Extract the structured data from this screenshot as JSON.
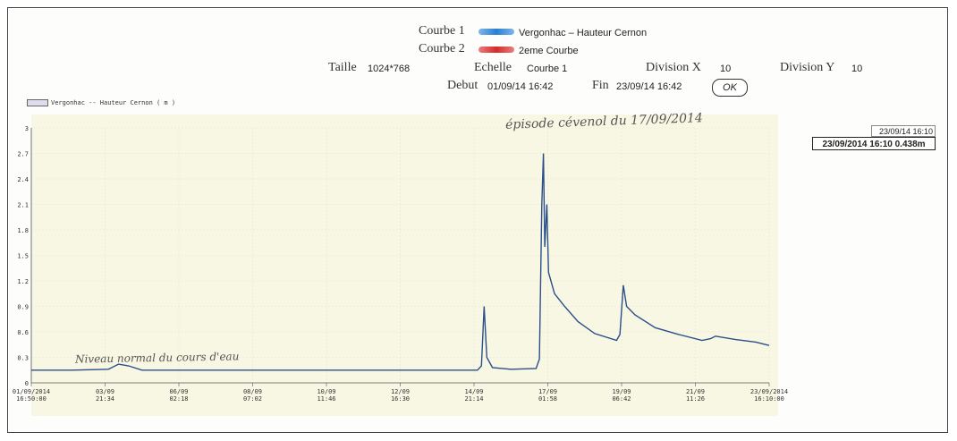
{
  "legend": {
    "courbe1_label": "Courbe 1",
    "courbe1_name": "Vergonhac – Hauteur Cernon",
    "courbe2_label": "Courbe 2",
    "courbe2_name": "2eme Courbe",
    "courbe1_color": "#2a7fd4",
    "courbe2_color": "#d42a2a"
  },
  "controls": {
    "taille_label": "Taille",
    "taille_value": "1024*768",
    "echelle_label": "Echelle",
    "echelle_value": "Courbe 1",
    "divx_label": "Division X",
    "divx_value": "10",
    "divy_label": "Division Y",
    "divy_value": "10",
    "debut_label": "Debut",
    "debut_value": "01/09/14 16:42",
    "fin_label": "Fin",
    "fin_value": "23/09/14 16:42",
    "ok_label": "OK"
  },
  "readout": {
    "date": "23/09/14 16:10",
    "value": "23/09/2014 16:10 0.438m"
  },
  "annotations": {
    "episode": "épisode cévenol du 17/09/2014",
    "normal": "Niveau normal du cours d'eau"
  },
  "chart_data": {
    "type": "line",
    "series": [
      {
        "name": "Vergonhac -- Hauteur Cernon ( m )",
        "color": "#2a4f8a",
        "points": [
          [
            0,
            0.15
          ],
          [
            1.2,
            0.15
          ],
          [
            2.3,
            0.16
          ],
          [
            2.6,
            0.22
          ],
          [
            2.9,
            0.2
          ],
          [
            3.3,
            0.15
          ],
          [
            4.4,
            0.15
          ],
          [
            6.5,
            0.15
          ],
          [
            8.7,
            0.15
          ],
          [
            10.8,
            0.15
          ],
          [
            12.5,
            0.15
          ],
          [
            13.3,
            0.15
          ],
          [
            13.42,
            0.2
          ],
          [
            13.5,
            0.9
          ],
          [
            13.58,
            0.3
          ],
          [
            13.75,
            0.18
          ],
          [
            14.3,
            0.16
          ],
          [
            15.05,
            0.17
          ],
          [
            15.15,
            0.28
          ],
          [
            15.22,
            2.1
          ],
          [
            15.27,
            2.7
          ],
          [
            15.31,
            1.6
          ],
          [
            15.37,
            2.1
          ],
          [
            15.42,
            1.3
          ],
          [
            15.6,
            1.05
          ],
          [
            15.9,
            0.9
          ],
          [
            16.3,
            0.72
          ],
          [
            16.8,
            0.58
          ],
          [
            17.45,
            0.5
          ],
          [
            17.55,
            0.57
          ],
          [
            17.65,
            1.15
          ],
          [
            17.75,
            0.9
          ],
          [
            18.0,
            0.8
          ],
          [
            18.6,
            0.65
          ],
          [
            19.3,
            0.57
          ],
          [
            20.0,
            0.5
          ],
          [
            20.25,
            0.52
          ],
          [
            20.4,
            0.55
          ],
          [
            21.0,
            0.51
          ],
          [
            21.6,
            0.48
          ],
          [
            22.0,
            0.44
          ]
        ]
      }
    ],
    "x_ticks": [
      "01/09/2014\n16:50:00",
      "03/09\n21:34",
      "06/09\n02:18",
      "08/09\n07:02",
      "10/09\n11:46",
      "12/09\n16:30",
      "14/09\n21:14",
      "17/09\n01:58",
      "19/09\n06:42",
      "21/09\n11:26",
      "23/09/2014\n16:10:00"
    ],
    "y_ticks": [
      "0",
      "0.3",
      "0.6",
      "0.9",
      "1.2",
      "1.5",
      "1.8",
      "2.1",
      "2.4",
      "2.7",
      "3"
    ],
    "xlim": [
      0,
      22
    ],
    "ylim": [
      0,
      3
    ],
    "grid": true
  }
}
